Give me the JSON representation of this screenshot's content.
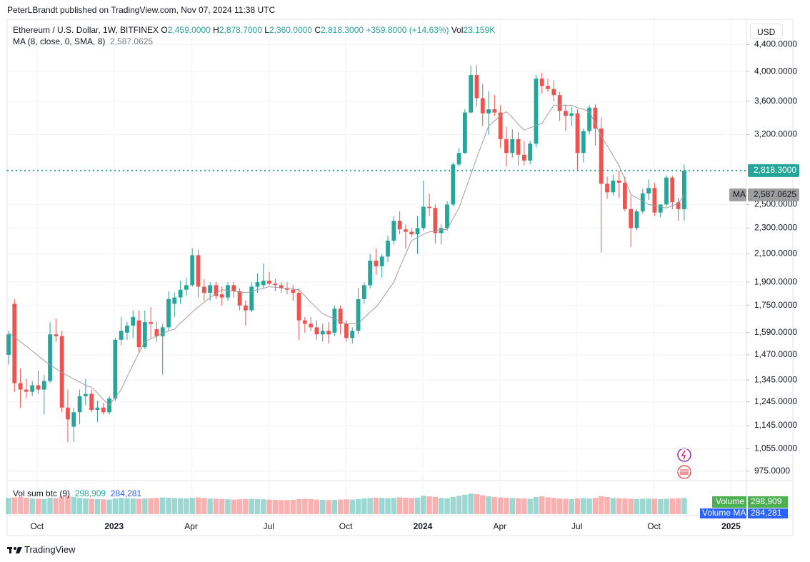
{
  "chart_data": {
    "type": "candlestick",
    "header": "PeterLBrandt published on TradingView.com, Nov 07, 2024 11:38 UTC",
    "symbol": "Ethereum / U.S. Dollar, 1W, BITFINEX",
    "legend_items": [
      {
        "prefix": "O",
        "text": "2,459.0000"
      },
      {
        "prefix": "H",
        "text": "2,878.7000"
      },
      {
        "prefix": "L",
        "text": "2,360.0000"
      },
      {
        "prefix": "C",
        "text": "2,818.3000"
      }
    ],
    "change": "+359.8000 (+14.63%)",
    "volume_legend": {
      "prefix": "Vol",
      "text": "23.159K"
    },
    "currency": "USD",
    "up_color": "#26a69a",
    "down_color": "#ef5350",
    "ohlc": [
      [
        1470,
        1600,
        1420,
        1580
      ],
      [
        1760,
        1790,
        1290,
        1330
      ],
      [
        1330,
        1400,
        1220,
        1300
      ],
      [
        1300,
        1350,
        1260,
        1290
      ],
      [
        1290,
        1340,
        1270,
        1320
      ],
      [
        1320,
        1390,
        1280,
        1300
      ],
      [
        1300,
        1370,
        1190,
        1340
      ],
      [
        1340,
        1650,
        1330,
        1580
      ],
      [
        1580,
        1670,
        1540,
        1570
      ],
      [
        1570,
        1600,
        1200,
        1220
      ],
      [
        1220,
        1300,
        1080,
        1170
      ],
      [
        1140,
        1220,
        1080,
        1200
      ],
      [
        1200,
        1300,
        1150,
        1270
      ],
      [
        1270,
        1350,
        1230,
        1280
      ],
      [
        1280,
        1300,
        1200,
        1210
      ],
      [
        1210,
        1250,
        1160,
        1220
      ],
      [
        1220,
        1240,
        1190,
        1200
      ],
      [
        1200,
        1270,
        1190,
        1260
      ],
      [
        1260,
        1560,
        1250,
        1550
      ],
      [
        1550,
        1680,
        1520,
        1600
      ],
      [
        1590,
        1650,
        1550,
        1630
      ],
      [
        1630,
        1720,
        1560,
        1680
      ],
      [
        1660,
        1720,
        1480,
        1510
      ],
      [
        1510,
        1720,
        1500,
        1650
      ],
      [
        1650,
        1740,
        1560,
        1640
      ],
      [
        1610,
        1650,
        1540,
        1570
      ],
      [
        1570,
        1640,
        1370,
        1620
      ],
      [
        1620,
        1840,
        1600,
        1790
      ],
      [
        1760,
        1830,
        1680,
        1800
      ],
      [
        1800,
        1910,
        1760,
        1850
      ],
      [
        1850,
        1930,
        1810,
        1880
      ],
      [
        1880,
        2140,
        1870,
        2090
      ],
      [
        2090,
        2130,
        1800,
        1870
      ],
      [
        1870,
        1920,
        1780,
        1830
      ],
      [
        1830,
        1900,
        1780,
        1880
      ],
      [
        1880,
        1900,
        1790,
        1810
      ],
      [
        1820,
        1870,
        1750,
        1800
      ],
      [
        1800,
        1900,
        1780,
        1880
      ],
      [
        1880,
        1900,
        1800,
        1840
      ],
      [
        1840,
        1860,
        1720,
        1750
      ],
      [
        1750,
        1780,
        1630,
        1720
      ],
      [
        1720,
        1900,
        1710,
        1870
      ],
      [
        1870,
        1960,
        1830,
        1900
      ],
      [
        1880,
        2030,
        1860,
        1910
      ],
      [
        1910,
        1970,
        1880,
        1890
      ],
      [
        1890,
        1920,
        1840,
        1880
      ],
      [
        1880,
        1900,
        1830,
        1860
      ],
      [
        1860,
        1900,
        1820,
        1850
      ],
      [
        1850,
        1880,
        1780,
        1830
      ],
      [
        1830,
        1860,
        1550,
        1660
      ],
      [
        1660,
        1680,
        1590,
        1640
      ],
      [
        1640,
        1680,
        1600,
        1620
      ],
      [
        1620,
        1660,
        1550,
        1580
      ],
      [
        1580,
        1640,
        1540,
        1600
      ],
      [
        1600,
        1650,
        1530,
        1580
      ],
      [
        1590,
        1750,
        1570,
        1730
      ],
      [
        1730,
        1750,
        1580,
        1640
      ],
      [
        1640,
        1660,
        1540,
        1560
      ],
      [
        1560,
        1620,
        1530,
        1600
      ],
      [
        1600,
        1860,
        1580,
        1790
      ],
      [
        1790,
        1900,
        1760,
        1880
      ],
      [
        1880,
        2100,
        1860,
        2050
      ],
      [
        2050,
        2140,
        1950,
        2010
      ],
      [
        2010,
        2100,
        1930,
        2080
      ],
      [
        2080,
        2240,
        2040,
        2200
      ],
      [
        2200,
        2400,
        2170,
        2360
      ],
      [
        2360,
        2440,
        2250,
        2290
      ],
      [
        2290,
        2330,
        2140,
        2270
      ],
      [
        2270,
        2300,
        2230,
        2250
      ],
      [
        2250,
        2400,
        2100,
        2300
      ],
      [
        2300,
        2720,
        2280,
        2480
      ],
      [
        2480,
        2600,
        2400,
        2470
      ],
      [
        2470,
        2500,
        2180,
        2260
      ],
      [
        2260,
        2330,
        2170,
        2300
      ],
      [
        2300,
        2530,
        2280,
        2500
      ],
      [
        2500,
        2900,
        2480,
        2880
      ],
      [
        2880,
        3050,
        2860,
        3000
      ],
      [
        3000,
        3500,
        2990,
        3460
      ],
      [
        3460,
        4080,
        3450,
        3950
      ],
      [
        3950,
        4090,
        3530,
        3640
      ],
      [
        3640,
        3830,
        3300,
        3450
      ],
      [
        3450,
        3730,
        3200,
        3500
      ],
      [
        3500,
        3680,
        3420,
        3460
      ],
      [
        3460,
        3550,
        3050,
        3150
      ],
      [
        3150,
        3290,
        2860,
        3000
      ],
      [
        3000,
        3260,
        2950,
        3150
      ],
      [
        3150,
        3230,
        2870,
        2980
      ],
      [
        2980,
        3130,
        2870,
        2920
      ],
      [
        2920,
        3130,
        2880,
        3100
      ],
      [
        3100,
        3950,
        3060,
        3900
      ],
      [
        3900,
        3980,
        3700,
        3800
      ],
      [
        3800,
        3900,
        3720,
        3760
      ],
      [
        3760,
        3880,
        3600,
        3680
      ],
      [
        3680,
        3720,
        3360,
        3480
      ],
      [
        3480,
        3560,
        3240,
        3420
      ],
      [
        3420,
        3530,
        3300,
        3450
      ],
      [
        3450,
        3500,
        2820,
        3000
      ],
      [
        3000,
        3270,
        2900,
        3240
      ],
      [
        3240,
        3550,
        3200,
        3520
      ],
      [
        3520,
        3560,
        3080,
        3270
      ],
      [
        3270,
        3400,
        2110,
        2690
      ],
      [
        2690,
        2760,
        2550,
        2610
      ],
      [
        2610,
        2780,
        2580,
        2720
      ],
      [
        2720,
        2820,
        2560,
        2700
      ],
      [
        2700,
        2760,
        2440,
        2460
      ],
      [
        2460,
        2580,
        2150,
        2300
      ],
      [
        2300,
        2460,
        2280,
        2440
      ],
      [
        2440,
        2640,
        2420,
        2600
      ],
      [
        2600,
        2730,
        2540,
        2650
      ],
      [
        2650,
        2700,
        2400,
        2430
      ],
      [
        2430,
        2500,
        2390,
        2500
      ],
      [
        2500,
        2770,
        2480,
        2750
      ],
      [
        2750,
        2770,
        2460,
        2520
      ],
      [
        2520,
        2560,
        2360,
        2460
      ],
      [
        2459,
        2878.7,
        2360,
        2818.3
      ]
    ],
    "ma": {
      "name": "MA (8, close, 0, SMA, 8)",
      "short_name": "MA",
      "color": "#9e9e9e",
      "last_label": "2,587.0625",
      "values": [
        1590,
        1565,
        1540,
        1515,
        1490,
        1465,
        1440,
        1420,
        1400,
        1380,
        1365,
        1350,
        1335,
        1320,
        1310,
        1285,
        1255,
        1230,
        1265,
        1300,
        1360,
        1420,
        1480,
        1540,
        1555,
        1570,
        1585,
        1600,
        1610,
        1645,
        1675,
        1710,
        1740,
        1770,
        1800,
        1825,
        1850,
        1845,
        1840,
        1835,
        1830,
        1840,
        1850,
        1860,
        1870,
        1866,
        1862,
        1858,
        1854,
        1850,
        1810,
        1770,
        1735,
        1700,
        1685,
        1670,
        1655,
        1640,
        1640,
        1640,
        1675,
        1710,
        1740,
        1790,
        1845,
        1900,
        2000,
        2100,
        2200,
        2225,
        2250,
        2270,
        2275,
        2285,
        2290,
        2380,
        2470,
        2620,
        2780,
        2950,
        3120,
        3300,
        3360,
        3420,
        3470,
        3400,
        3320,
        3250,
        3280,
        3300,
        3330,
        3440,
        3550,
        3550,
        3550,
        3550,
        3520,
        3500,
        3470,
        3330,
        3180,
        3080,
        2970,
        2870,
        2730,
        2590,
        2560,
        2530,
        2500,
        2490,
        2480,
        2470,
        2490,
        2510,
        2587.0625
      ]
    },
    "price_line": {
      "value": 2818.3,
      "label": "2,818.3000"
    },
    "log_scale": true,
    "grid": true,
    "ylim": [
      945,
      4810
    ],
    "yticks": [
      {
        "value": 4400,
        "label": "4,400.0000"
      },
      {
        "value": 4000,
        "label": "4,000.0000"
      },
      {
        "value": 3600,
        "label": "3,600.0000"
      },
      {
        "value": 3200,
        "label": "3,200.0000"
      },
      {
        "value": 2500,
        "label": "2,500.0000"
      },
      {
        "value": 2300,
        "label": "2,300.0000"
      },
      {
        "value": 2100,
        "label": "2,100.0000"
      },
      {
        "value": 1900,
        "label": "1,900.0000"
      },
      {
        "value": 1750,
        "label": "1,750.0000"
      },
      {
        "value": 1590,
        "label": "1,590.0000"
      },
      {
        "value": 1470,
        "label": "1,470.0000"
      },
      {
        "value": 1345,
        "label": "1,345.0000"
      },
      {
        "value": 1245,
        "label": "1,245.0000"
      },
      {
        "value": 1145,
        "label": "1,145.0000"
      },
      {
        "value": 1055,
        "label": "1,055.0000"
      },
      {
        "value": 975,
        "label": "975.0000"
      }
    ],
    "xlim": [
      -0.24,
      124.5
    ],
    "xticks": [
      {
        "value": 4.8,
        "label": "Oct"
      },
      {
        "value": 17.8,
        "label": "2023"
      },
      {
        "value": 30.8,
        "label": "Apr"
      },
      {
        "value": 43.9,
        "label": "Jul"
      },
      {
        "value": 56.9,
        "label": "Oct"
      },
      {
        "value": 69.9,
        "label": "2024"
      },
      {
        "value": 82.9,
        "label": "Apr"
      },
      {
        "value": 95.9,
        "label": "Jul"
      },
      {
        "value": 108.9,
        "label": "Oct"
      },
      {
        "value": 121.9,
        "label": "2025"
      }
    ],
    "volume": {
      "name": "Vol sum btc (9)",
      "last_label": "298,909",
      "ma_label": "284,281",
      "badge": "Volume",
      "ma_badge": "Volume MA",
      "ylim": [
        0,
        450000
      ],
      "values": [
        300000,
        310000,
        320000,
        305000,
        290000,
        285000,
        280000,
        300000,
        295000,
        330000,
        340000,
        320000,
        300000,
        290000,
        285000,
        280000,
        275000,
        270000,
        290000,
        300000,
        295000,
        290000,
        285000,
        290000,
        295000,
        300000,
        310000,
        305000,
        300000,
        295000,
        290000,
        300000,
        310000,
        300000,
        290000,
        285000,
        280000,
        275000,
        270000,
        275000,
        280000,
        285000,
        280000,
        275000,
        270000,
        265000,
        260000,
        260000,
        265000,
        280000,
        285000,
        280000,
        270000,
        265000,
        260000,
        265000,
        270000,
        275000,
        270000,
        280000,
        290000,
        300000,
        305000,
        300000,
        295000,
        300000,
        310000,
        305000,
        300000,
        305000,
        340000,
        330000,
        320000,
        300000,
        295000,
        320000,
        340000,
        360000,
        380000,
        370000,
        350000,
        330000,
        320000,
        310000,
        305000,
        300000,
        295000,
        290000,
        285000,
        320000,
        330000,
        310000,
        300000,
        290000,
        285000,
        280000,
        290000,
        295000,
        290000,
        300000,
        330000,
        320000,
        300000,
        295000,
        290000,
        285000,
        280000,
        285000,
        290000,
        285000,
        280000,
        285000,
        290000,
        295000,
        298909
      ]
    },
    "footer": "TradingView"
  }
}
